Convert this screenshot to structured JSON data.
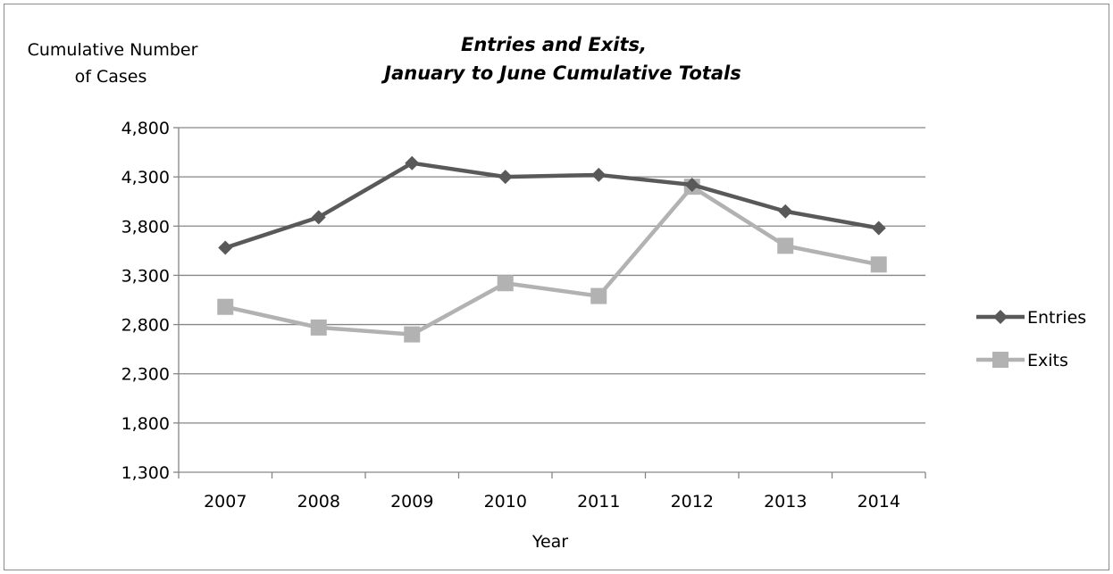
{
  "chart_data": {
    "type": "line",
    "title_line1": "Entries and Exits,",
    "title_line2": "January to June Cumulative Totals",
    "ylabel_line1": "Cumulative Number",
    "ylabel_line2": "of Cases",
    "xlabel": "Year",
    "categories": [
      "2007",
      "2008",
      "2009",
      "2010",
      "2011",
      "2012",
      "2013",
      "2014"
    ],
    "ylim": [
      1300,
      4800
    ],
    "yticks": [
      "1,300",
      "1,800",
      "2,300",
      "2,800",
      "3,300",
      "3,800",
      "4,300",
      "4,800"
    ],
    "ytick_values": [
      1300,
      1800,
      2300,
      2800,
      3300,
      3800,
      4300,
      4800
    ],
    "grid": true,
    "legend_position": "right",
    "series": [
      {
        "name": "Entries",
        "color": "#595959",
        "marker": "diamond",
        "values": [
          3580,
          3890,
          4440,
          4300,
          4320,
          4220,
          3950,
          3780
        ]
      },
      {
        "name": "Exits",
        "color": "#b2b2b2",
        "marker": "square",
        "values": [
          2980,
          2770,
          2700,
          3220,
          3090,
          4200,
          3600,
          3410
        ]
      }
    ]
  }
}
